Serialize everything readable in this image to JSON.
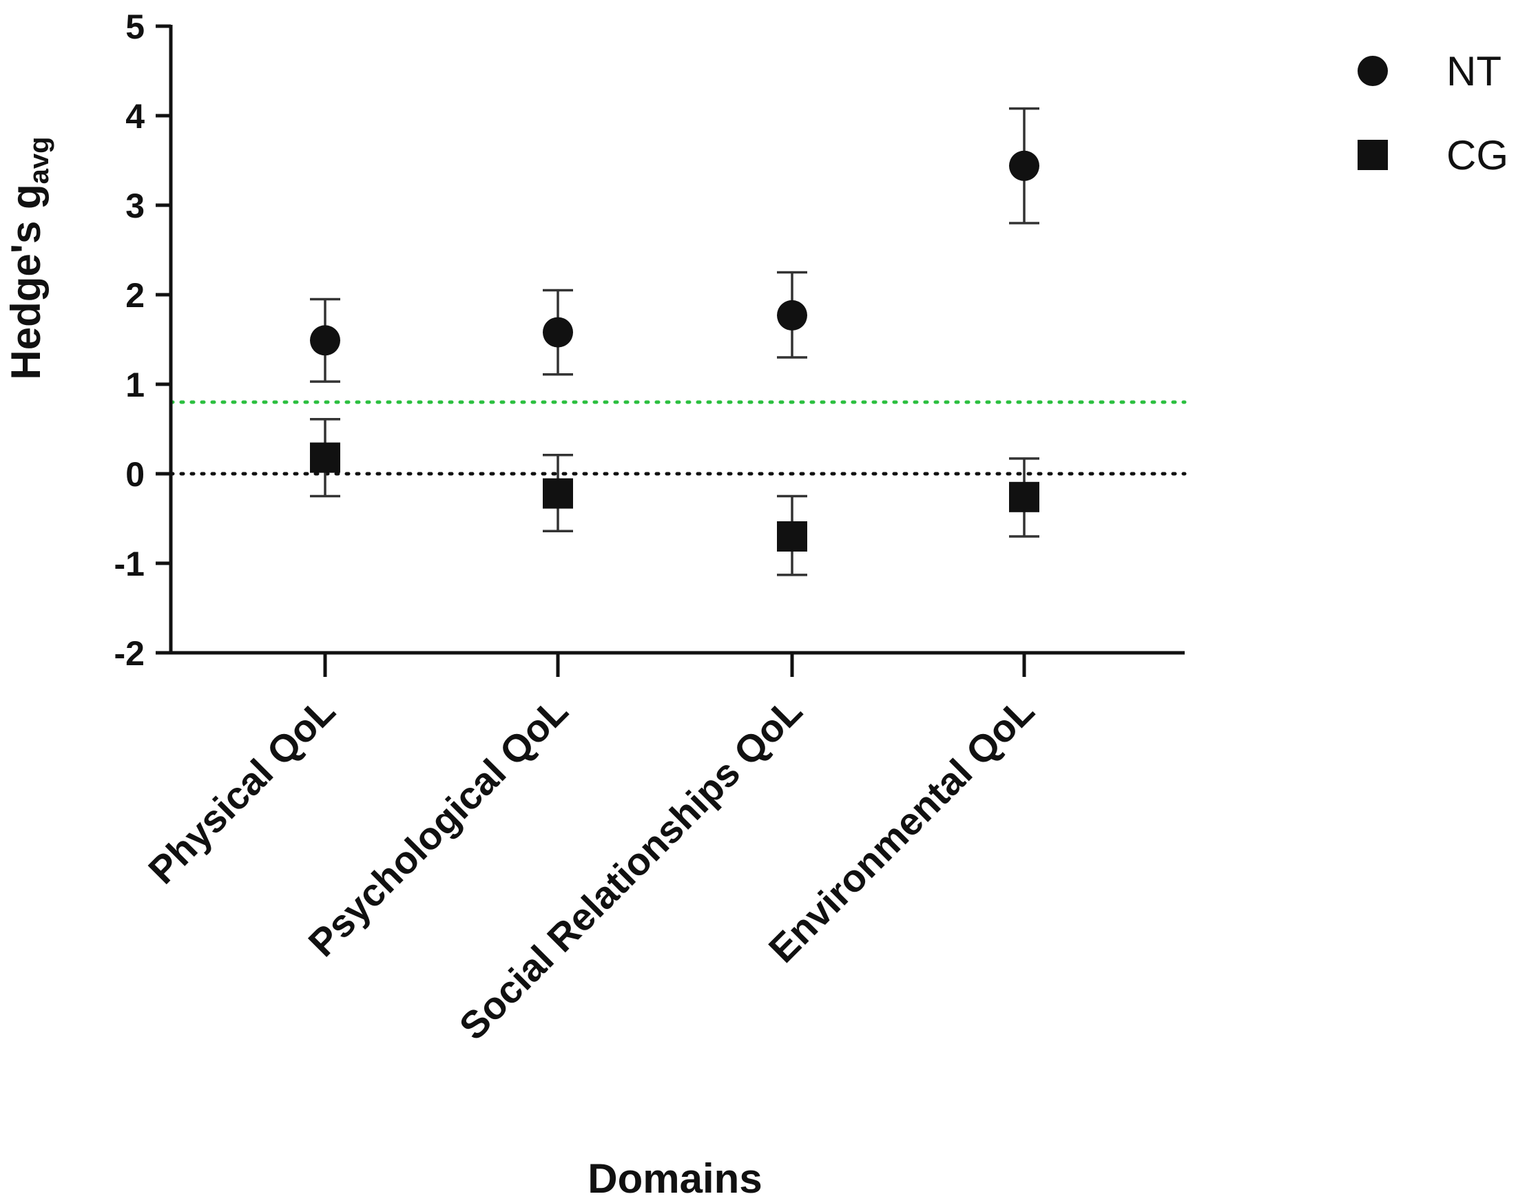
{
  "chart_data": {
    "type": "scatter",
    "xlabel": "Domains",
    "ylabel": "Hedge's g",
    "ylabel_subscript": "avg",
    "ylim": [
      -2,
      5
    ],
    "yticks": [
      -2,
      -1,
      0,
      1,
      2,
      3,
      4,
      5
    ],
    "categories": [
      "Physical QoL",
      "Psychological QoL",
      "Social Relationships QoL",
      "Environmental QoL"
    ],
    "series": [
      {
        "name": "NT",
        "marker": "circle",
        "color": "#111111",
        "values": [
          1.49,
          1.58,
          1.77,
          3.44
        ],
        "err_low": [
          1.03,
          1.11,
          1.3,
          2.8
        ],
        "err_high": [
          1.95,
          2.05,
          2.25,
          4.08
        ]
      },
      {
        "name": "CG",
        "marker": "square",
        "color": "#111111",
        "values": [
          0.18,
          -0.22,
          -0.7,
          -0.26
        ],
        "err_low": [
          -0.25,
          -0.64,
          -1.13,
          -0.7
        ],
        "err_high": [
          0.61,
          0.21,
          -0.25,
          0.17
        ]
      }
    ],
    "reference_lines": [
      {
        "y": 0.8,
        "color": "#2bbf3f",
        "style": "dotted"
      },
      {
        "y": 0,
        "color": "#111111",
        "style": "dotted"
      }
    ],
    "legend": "top-right",
    "grid": false
  }
}
